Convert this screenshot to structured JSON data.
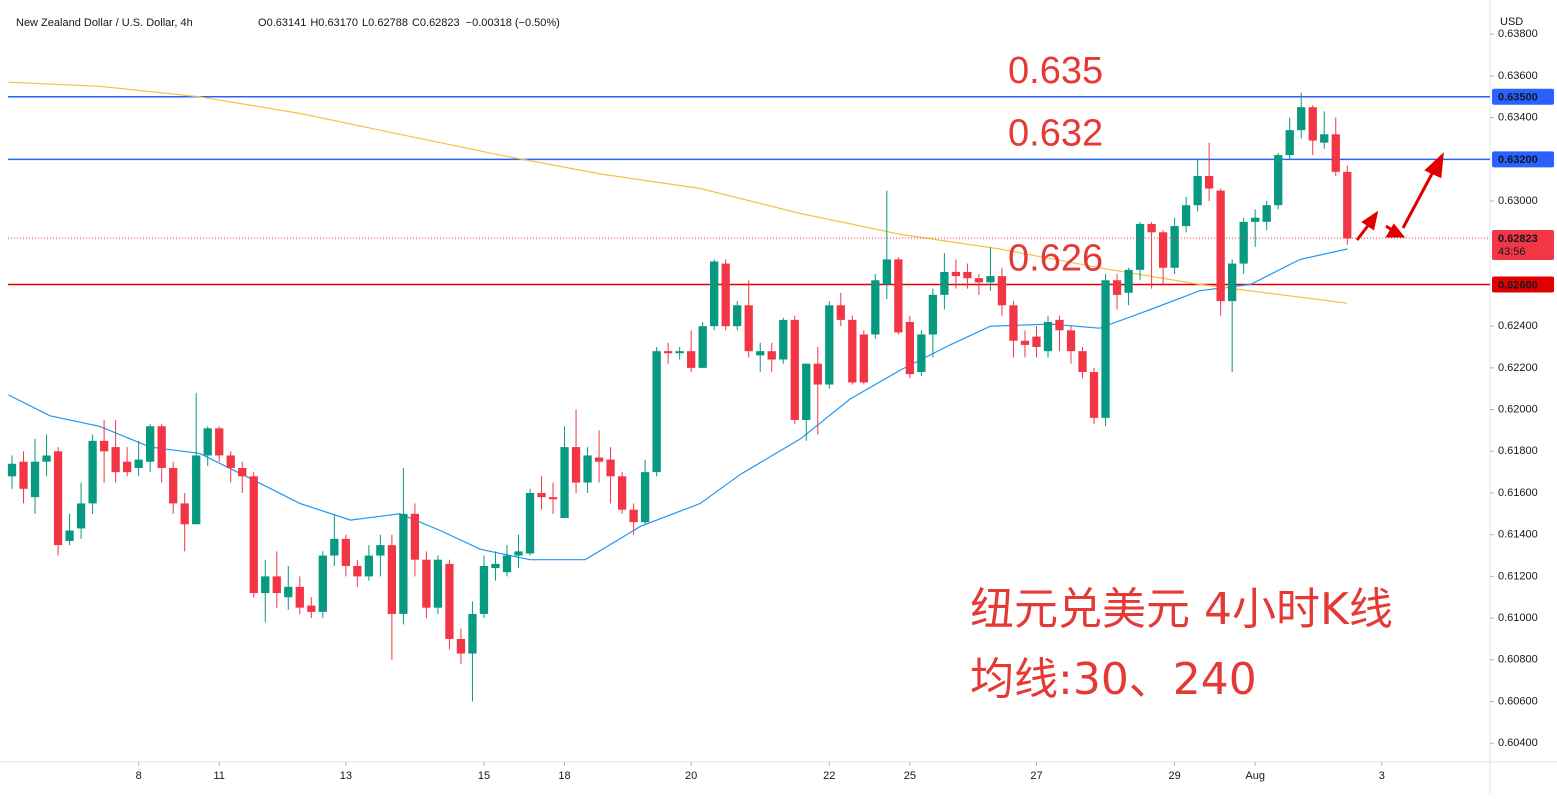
{
  "chart_data": {
    "type": "candlestick",
    "title": "New Zealand Dollar / U.S. Dollar, 4h",
    "ohlc_legend": [
      {
        "key": "O",
        "value": "0.63141"
      },
      {
        "key": "H",
        "value": "0.63170"
      },
      {
        "key": "L",
        "value": "0.62788"
      },
      {
        "key": "C",
        "value": "0.62823"
      }
    ],
    "change": "−0.00318 (−0.50%)",
    "currency": "USD",
    "up_color": "#089981",
    "down_color": "#f23645",
    "xlim": [
      -0.35,
      128.4
    ],
    "xticks": [
      {
        "value": 11,
        "label": "8"
      },
      {
        "value": 18,
        "label": "11"
      },
      {
        "value": 29,
        "label": "13"
      },
      {
        "value": 41,
        "label": "15"
      },
      {
        "value": 48,
        "label": "18"
      },
      {
        "value": 59,
        "label": "20"
      },
      {
        "value": 71,
        "label": "22"
      },
      {
        "value": 78,
        "label": "25"
      },
      {
        "value": 89,
        "label": "27"
      },
      {
        "value": 101,
        "label": "29"
      },
      {
        "value": 108,
        "label": "Aug"
      },
      {
        "value": 119,
        "label": "3"
      }
    ],
    "ylim": [
      0.6031,
      0.6394
    ],
    "yticks": [
      {
        "value": 0.638,
        "label": "0.63800"
      },
      {
        "value": 0.636,
        "label": "0.63600"
      },
      {
        "value": 0.634,
        "label": "0.63400"
      },
      {
        "value": 0.63,
        "label": "0.63000"
      },
      {
        "value": 0.624,
        "label": "0.62400"
      },
      {
        "value": 0.622,
        "label": "0.62200"
      },
      {
        "value": 0.62,
        "label": "0.62000"
      },
      {
        "value": 0.618,
        "label": "0.61800"
      },
      {
        "value": 0.616,
        "label": "0.61600"
      },
      {
        "value": 0.614,
        "label": "0.61400"
      },
      {
        "value": 0.612,
        "label": "0.61200"
      },
      {
        "value": 0.61,
        "label": "0.61000"
      },
      {
        "value": 0.608,
        "label": "0.60800"
      },
      {
        "value": 0.606,
        "label": "0.60600"
      },
      {
        "value": 0.604,
        "label": "0.60400"
      }
    ],
    "candles": [
      [
        0.6168,
        0.6178,
        0.6162,
        0.6174
      ],
      [
        0.6175,
        0.618,
        0.6155,
        0.6162
      ],
      [
        0.6158,
        0.6186,
        0.615,
        0.6175
      ],
      [
        0.6175,
        0.6188,
        0.6168,
        0.6178
      ],
      [
        0.618,
        0.6182,
        0.613,
        0.6135
      ],
      [
        0.6137,
        0.615,
        0.6135,
        0.6142
      ],
      [
        0.6143,
        0.6165,
        0.6138,
        0.6155
      ],
      [
        0.6155,
        0.6188,
        0.615,
        0.6185
      ],
      [
        0.6185,
        0.6195,
        0.6165,
        0.618
      ],
      [
        0.6182,
        0.6195,
        0.6165,
        0.617
      ],
      [
        0.6175,
        0.6182,
        0.6168,
        0.617
      ],
      [
        0.6172,
        0.6185,
        0.6168,
        0.6176
      ],
      [
        0.6175,
        0.6193,
        0.617,
        0.6192
      ],
      [
        0.6192,
        0.6193,
        0.6165,
        0.6172
      ],
      [
        0.6172,
        0.6175,
        0.615,
        0.6155
      ],
      [
        0.6155,
        0.616,
        0.6132,
        0.6145
      ],
      [
        0.6145,
        0.6208,
        0.6145,
        0.6178
      ],
      [
        0.6178,
        0.6192,
        0.6173,
        0.6191
      ],
      [
        0.6191,
        0.6192,
        0.6175,
        0.6178
      ],
      [
        0.6178,
        0.618,
        0.6165,
        0.6172
      ],
      [
        0.6172,
        0.6175,
        0.616,
        0.6168
      ],
      [
        0.6168,
        0.617,
        0.611,
        0.6112
      ],
      [
        0.6112,
        0.6128,
        0.6098,
        0.612
      ],
      [
        0.612,
        0.6132,
        0.6105,
        0.6112
      ],
      [
        0.611,
        0.6125,
        0.6104,
        0.6115
      ],
      [
        0.6115,
        0.612,
        0.6102,
        0.6105
      ],
      [
        0.6106,
        0.611,
        0.61,
        0.6103
      ],
      [
        0.6103,
        0.6132,
        0.61,
        0.613
      ],
      [
        0.613,
        0.615,
        0.6125,
        0.6138
      ],
      [
        0.6138,
        0.614,
        0.612,
        0.6125
      ],
      [
        0.6125,
        0.6128,
        0.6115,
        0.612
      ],
      [
        0.612,
        0.6135,
        0.6118,
        0.613
      ],
      [
        0.613,
        0.614,
        0.612,
        0.6135
      ],
      [
        0.6135,
        0.614,
        0.608,
        0.6102
      ],
      [
        0.6102,
        0.6172,
        0.6097,
        0.615
      ],
      [
        0.615,
        0.6155,
        0.612,
        0.6128
      ],
      [
        0.6128,
        0.6132,
        0.61,
        0.6105
      ],
      [
        0.6105,
        0.613,
        0.6102,
        0.6128
      ],
      [
        0.6126,
        0.6128,
        0.6085,
        0.609
      ],
      [
        0.609,
        0.6095,
        0.6078,
        0.6083
      ],
      [
        0.6083,
        0.6108,
        0.606,
        0.6102
      ],
      [
        0.6102,
        0.613,
        0.61,
        0.6125
      ],
      [
        0.6124,
        0.6132,
        0.6118,
        0.6126
      ],
      [
        0.6122,
        0.6135,
        0.612,
        0.613
      ],
      [
        0.613,
        0.614,
        0.6124,
        0.6132
      ],
      [
        0.6131,
        0.6162,
        0.613,
        0.616
      ],
      [
        0.616,
        0.6168,
        0.6152,
        0.6158
      ],
      [
        0.6158,
        0.6165,
        0.615,
        0.6157
      ],
      [
        0.6148,
        0.6192,
        0.6148,
        0.6182
      ],
      [
        0.6182,
        0.62,
        0.616,
        0.6165
      ],
      [
        0.6165,
        0.6182,
        0.616,
        0.6178
      ],
      [
        0.6177,
        0.619,
        0.6165,
        0.6175
      ],
      [
        0.6176,
        0.6182,
        0.6155,
        0.6168
      ],
      [
        0.6168,
        0.617,
        0.615,
        0.6152
      ],
      [
        0.6152,
        0.6155,
        0.614,
        0.6146
      ],
      [
        0.6146,
        0.6176,
        0.6145,
        0.617
      ],
      [
        0.617,
        0.623,
        0.6168,
        0.6228
      ],
      [
        0.6228,
        0.6232,
        0.6222,
        0.6227
      ],
      [
        0.6227,
        0.623,
        0.6224,
        0.6228
      ],
      [
        0.6228,
        0.6238,
        0.6218,
        0.622
      ],
      [
        0.622,
        0.6242,
        0.622,
        0.624
      ],
      [
        0.624,
        0.6272,
        0.6238,
        0.6271
      ],
      [
        0.627,
        0.6272,
        0.6238,
        0.624
      ],
      [
        0.624,
        0.6252,
        0.6238,
        0.625
      ],
      [
        0.625,
        0.6262,
        0.6225,
        0.6228
      ],
      [
        0.6226,
        0.6232,
        0.6218,
        0.6228
      ],
      [
        0.6228,
        0.6232,
        0.6218,
        0.6224
      ],
      [
        0.6224,
        0.6244,
        0.6222,
        0.6243
      ],
      [
        0.6243,
        0.6245,
        0.6193,
        0.6195
      ],
      [
        0.6195,
        0.6222,
        0.6185,
        0.6222
      ],
      [
        0.6222,
        0.623,
        0.6188,
        0.6212
      ],
      [
        0.6212,
        0.6252,
        0.621,
        0.625
      ],
      [
        0.625,
        0.6256,
        0.624,
        0.6243
      ],
      [
        0.6243,
        0.6245,
        0.6212,
        0.6213
      ],
      [
        0.6236,
        0.6238,
        0.6212,
        0.6213
      ],
      [
        0.6236,
        0.6265,
        0.6234,
        0.6262
      ],
      [
        0.626,
        0.6305,
        0.6253,
        0.6272
      ],
      [
        0.6272,
        0.6273,
        0.6236,
        0.6237
      ],
      [
        0.6242,
        0.6245,
        0.6215,
        0.6217
      ],
      [
        0.6218,
        0.6238,
        0.6216,
        0.6236
      ],
      [
        0.6236,
        0.6258,
        0.6225,
        0.6255
      ],
      [
        0.6255,
        0.6275,
        0.6248,
        0.6266
      ],
      [
        0.6266,
        0.6272,
        0.6258,
        0.6264
      ],
      [
        0.6266,
        0.627,
        0.6258,
        0.6263
      ],
      [
        0.6263,
        0.6265,
        0.6255,
        0.6261
      ],
      [
        0.6261,
        0.6278,
        0.6257,
        0.6264
      ],
      [
        0.6264,
        0.6268,
        0.6245,
        0.625
      ],
      [
        0.625,
        0.6252,
        0.6225,
        0.6233
      ],
      [
        0.6233,
        0.6238,
        0.6225,
        0.6231
      ],
      [
        0.6235,
        0.624,
        0.6225,
        0.623
      ],
      [
        0.6228,
        0.6245,
        0.6225,
        0.6242
      ],
      [
        0.6243,
        0.6245,
        0.6228,
        0.6238
      ],
      [
        0.6238,
        0.624,
        0.6222,
        0.6228
      ],
      [
        0.6228,
        0.623,
        0.6215,
        0.6218
      ],
      [
        0.6218,
        0.622,
        0.6193,
        0.6196
      ],
      [
        0.6196,
        0.6265,
        0.6192,
        0.6262
      ],
      [
        0.6262,
        0.6265,
        0.6248,
        0.6255
      ],
      [
        0.6256,
        0.6268,
        0.625,
        0.6267
      ],
      [
        0.6267,
        0.629,
        0.6262,
        0.6289
      ],
      [
        0.6289,
        0.629,
        0.6258,
        0.6285
      ],
      [
        0.6285,
        0.6286,
        0.626,
        0.6268
      ],
      [
        0.6268,
        0.6292,
        0.6265,
        0.6288
      ],
      [
        0.6288,
        0.6302,
        0.6285,
        0.6298
      ],
      [
        0.6298,
        0.632,
        0.6295,
        0.6312
      ],
      [
        0.6312,
        0.6328,
        0.63,
        0.6306
      ],
      [
        0.6305,
        0.6306,
        0.6245,
        0.6252
      ],
      [
        0.6252,
        0.6272,
        0.6218,
        0.627
      ],
      [
        0.627,
        0.6292,
        0.6265,
        0.629
      ],
      [
        0.629,
        0.6296,
        0.6278,
        0.6292
      ],
      [
        0.629,
        0.63,
        0.6286,
        0.6298
      ],
      [
        0.6298,
        0.6323,
        0.6296,
        0.6322
      ],
      [
        0.6322,
        0.634,
        0.632,
        0.6334
      ],
      [
        0.6334,
        0.6352,
        0.633,
        0.6345
      ],
      [
        0.6345,
        0.6346,
        0.6322,
        0.6329
      ],
      [
        0.6328,
        0.6343,
        0.6325,
        0.6332
      ],
      [
        0.6332,
        0.634,
        0.6312,
        0.6314
      ],
      [
        0.6314,
        0.6317,
        0.6279,
        0.6282
      ]
    ],
    "series": [
      {
        "color": "#2196f3",
        "x": [
          -0.3,
          3.3,
          7.6,
          12,
          16.3,
          20.7,
          25,
          29.4,
          33.7,
          37.2,
          40.7,
          45,
          49.8,
          54.6,
          59.8,
          63.3,
          68.5,
          72.8,
          77.2,
          81.5,
          85,
          90.2,
          94.5,
          98.9,
          103.2,
          107.6,
          111.9,
          116
        ],
        "values": [
          0.6207,
          0.6197,
          0.6192,
          0.6182,
          0.6179,
          0.6167,
          0.6155,
          0.6147,
          0.615,
          0.6142,
          0.6133,
          0.6128,
          0.6128,
          0.6144,
          0.6155,
          0.6169,
          0.6186,
          0.6205,
          0.6219,
          0.6231,
          0.624,
          0.6241,
          0.6239,
          0.6248,
          0.6257,
          0.626,
          0.6272,
          0.6277
        ]
      },
      {
        "color": "#f5c242",
        "x": [
          -0.3,
          7.6,
          16.3,
          25,
          33.7,
          42.4,
          51.1,
          59.8,
          68.5,
          77.2,
          85.8,
          94.5,
          103.2,
          116
        ],
        "values": [
          0.6357,
          0.6355,
          0.635,
          0.6342,
          0.6332,
          0.6322,
          0.6313,
          0.6306,
          0.6294,
          0.6284,
          0.6277,
          0.6268,
          0.626,
          0.6251
        ]
      }
    ],
    "levels": [
      {
        "value": 0.635,
        "label": "0.63500",
        "color": "#2962ff",
        "note": "0.635"
      },
      {
        "value": 0.632,
        "label": "0.63200",
        "color": "#2962ff",
        "note": "0.632"
      },
      {
        "value": 0.626,
        "label": "0.62600",
        "color": "#e00000",
        "note": "0.626"
      }
    ],
    "last_price": {
      "value": 0.62823,
      "label": "0.62823",
      "countdown": "43:56",
      "color": "#f23645"
    },
    "caption": [
      "纽元兑美元 4小时K线",
      "均线:30、240"
    ]
  }
}
